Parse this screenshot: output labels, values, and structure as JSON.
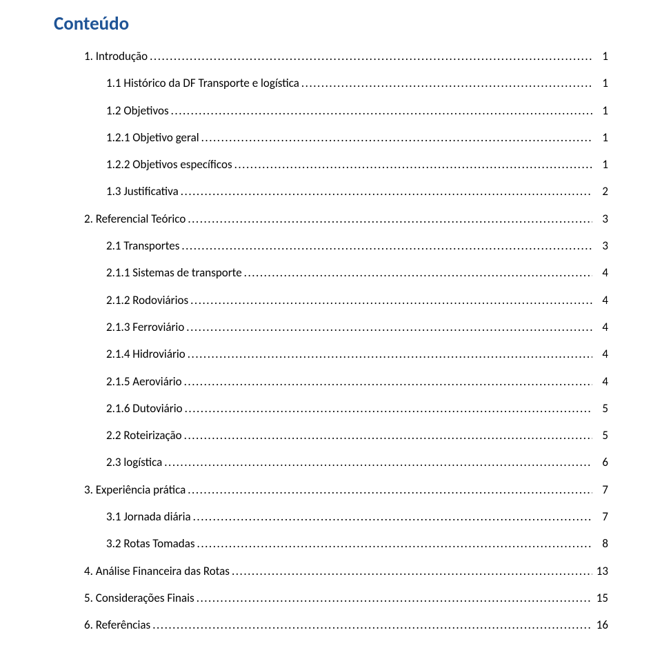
{
  "title": "Conteúdo",
  "title_color": "#1f5496",
  "text_color": "#000000",
  "entries": [
    {
      "label": "1. Introdução",
      "page": "1",
      "indent": 0
    },
    {
      "label": "1.1 Histórico da DF Transporte e logística",
      "page": "1",
      "indent": 1
    },
    {
      "label": "1.2 Objetivos",
      "page": "1",
      "indent": 1
    },
    {
      "label": "1.2.1 Objetivo geral",
      "page": "1",
      "indent": 1
    },
    {
      "label": "1.2.2 Objetivos específicos",
      "page": "1",
      "indent": 1
    },
    {
      "label": "1.3 Justificativa",
      "page": "2",
      "indent": 1
    },
    {
      "label": "2. Referencial Teórico",
      "page": "3",
      "indent": 0
    },
    {
      "label": "2.1 Transportes",
      "page": "3",
      "indent": 1
    },
    {
      "label": "2.1.1 Sistemas de transporte",
      "page": "4",
      "indent": 1
    },
    {
      "label": "2.1.2 Rodoviários",
      "page": "4",
      "indent": 1
    },
    {
      "label": "2.1.3 Ferroviário",
      "page": "4",
      "indent": 1
    },
    {
      "label": "2.1.4 Hidroviário",
      "page": "4",
      "indent": 1
    },
    {
      "label": "2.1.5 Aeroviário",
      "page": "4",
      "indent": 1
    },
    {
      "label": "2.1.6 Dutoviário",
      "page": "5",
      "indent": 1
    },
    {
      "label": "2.2 Roteirização",
      "page": "5",
      "indent": 1
    },
    {
      "label": "2.3 logística",
      "page": "6",
      "indent": 1
    },
    {
      "label": "3. Experiência prática",
      "page": "7",
      "indent": 0
    },
    {
      "label": "3.1 Jornada diária",
      "page": "7",
      "indent": 1
    },
    {
      "label": "3.2 Rotas Tomadas",
      "page": "8",
      "indent": 1
    },
    {
      "label": "4. Análise Financeira das Rotas",
      "page": "13",
      "indent": 0
    },
    {
      "label": "5. Considerações Finais",
      "page": "15",
      "indent": 0
    },
    {
      "label": "6. Referências",
      "page": "16",
      "indent": 0
    }
  ]
}
